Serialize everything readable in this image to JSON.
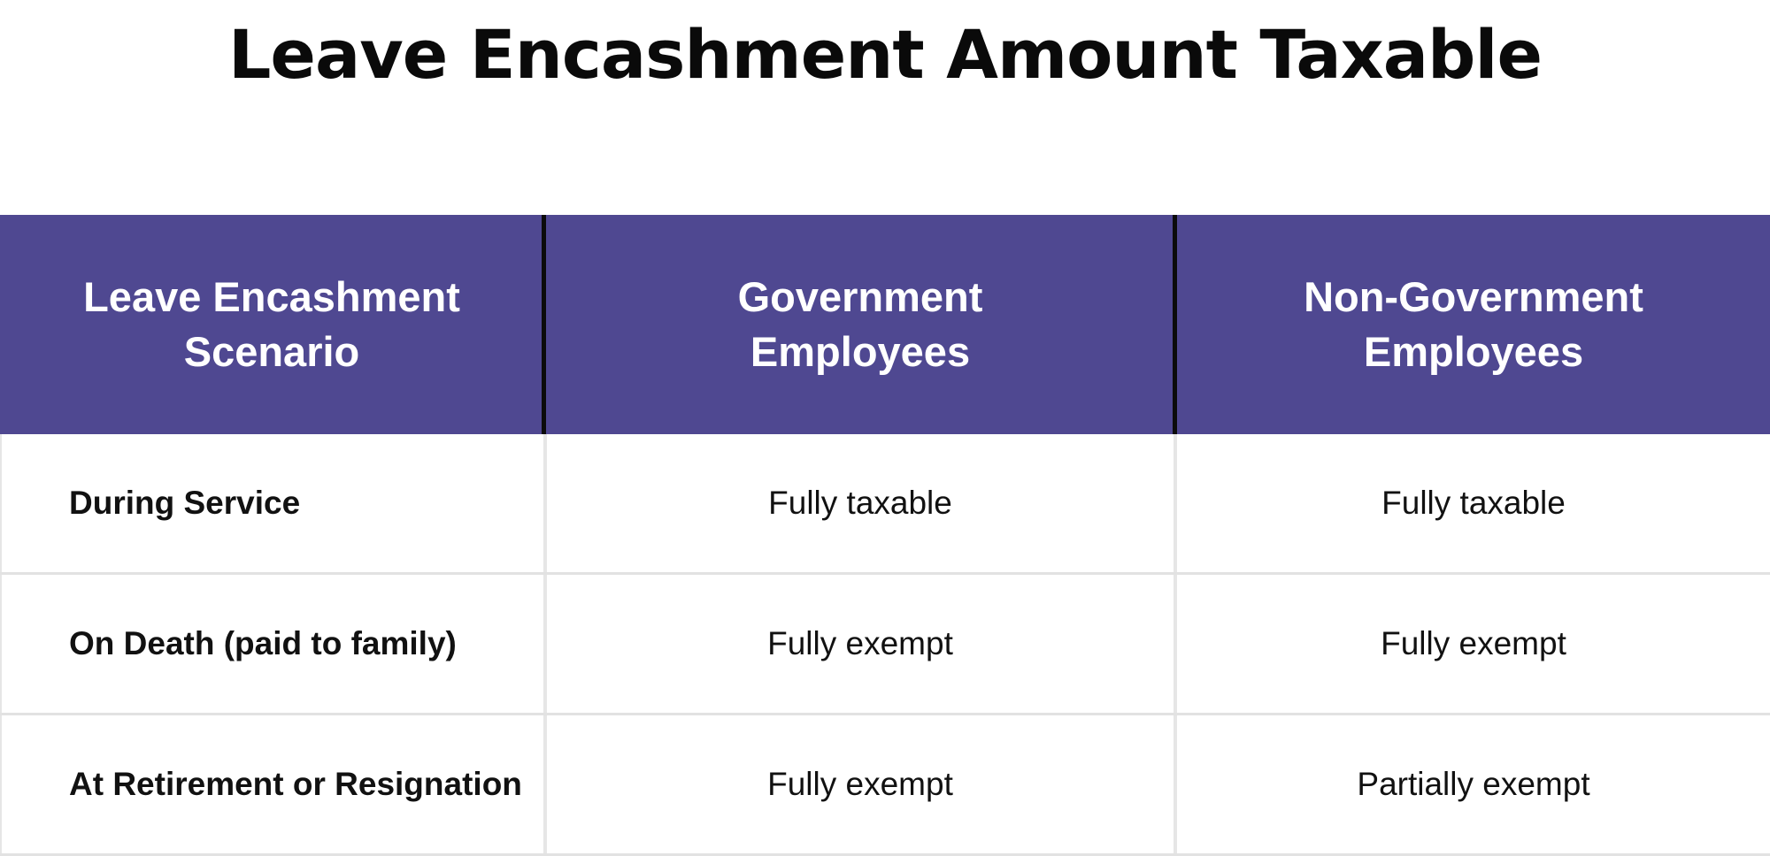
{
  "title": "Leave Encashment Amount Taxable",
  "table": {
    "headers": [
      "Leave Encashment Scenario",
      "Government Employees",
      "Non-Government Employees"
    ],
    "rows": [
      {
        "scenario": "During Service",
        "government": "Fully taxable",
        "non_government": "Fully taxable"
      },
      {
        "scenario": "On Death (paid to family)",
        "government": "Fully exempt",
        "non_government": "Fully exempt"
      },
      {
        "scenario": "At Retirement or Resignation",
        "government": "Fully exempt",
        "non_government": "Partially exempt"
      }
    ]
  },
  "colors": {
    "header_background": "#4f4891",
    "header_text": "#ffffff",
    "grid_line": "#e2e2e2"
  }
}
